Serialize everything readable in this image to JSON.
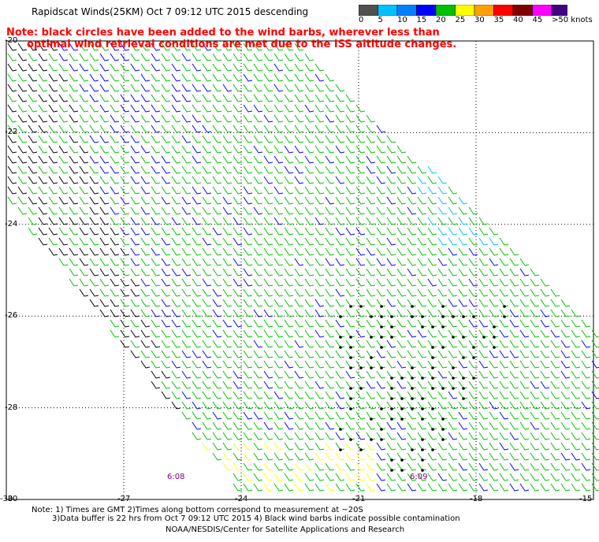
{
  "header": {
    "title": "Rapidscat Winds(25KM)  Oct  7 09:12 UTC 2015 descending",
    "note_line1": "Note: black circles have been added to the wind barbs, wherever less than",
    "note_line2": "optimal wind retrieval conditions are met due to the ISS altitude changes."
  },
  "colorbar": {
    "labels": [
      "0",
      "5",
      "10",
      "15",
      "20",
      "25",
      "30",
      "35",
      "40",
      "45",
      ">50 knots"
    ],
    "colors": [
      "#505050",
      "#00c0ff",
      "#0080ff",
      "#0000ff",
      "#00c000",
      "#ffff00",
      "#ffa000",
      "#ff0000",
      "#800000",
      "#ff00ff",
      "#400080"
    ]
  },
  "axes": {
    "lat_labels": [
      "-20",
      "-22",
      "-24",
      "-26",
      "-28",
      "-30"
    ],
    "lon_labels": [
      "-30",
      "-27",
      "-24",
      "-21",
      "-18",
      "-15"
    ]
  },
  "swath_times": [
    "6:08",
    "6:09"
  ],
  "footer": {
    "line1": "Note: 1) Times are GMT 2)Times along bottom correspond to measurement at ~20S",
    "line2": "3)Data buffer is 22 hrs from Oct  7 09:12 UTC 2015 4) Black wind barbs indicate possible contamination",
    "line3": "NOAA/NESDIS/Center for Satellite Applications and Research"
  }
}
